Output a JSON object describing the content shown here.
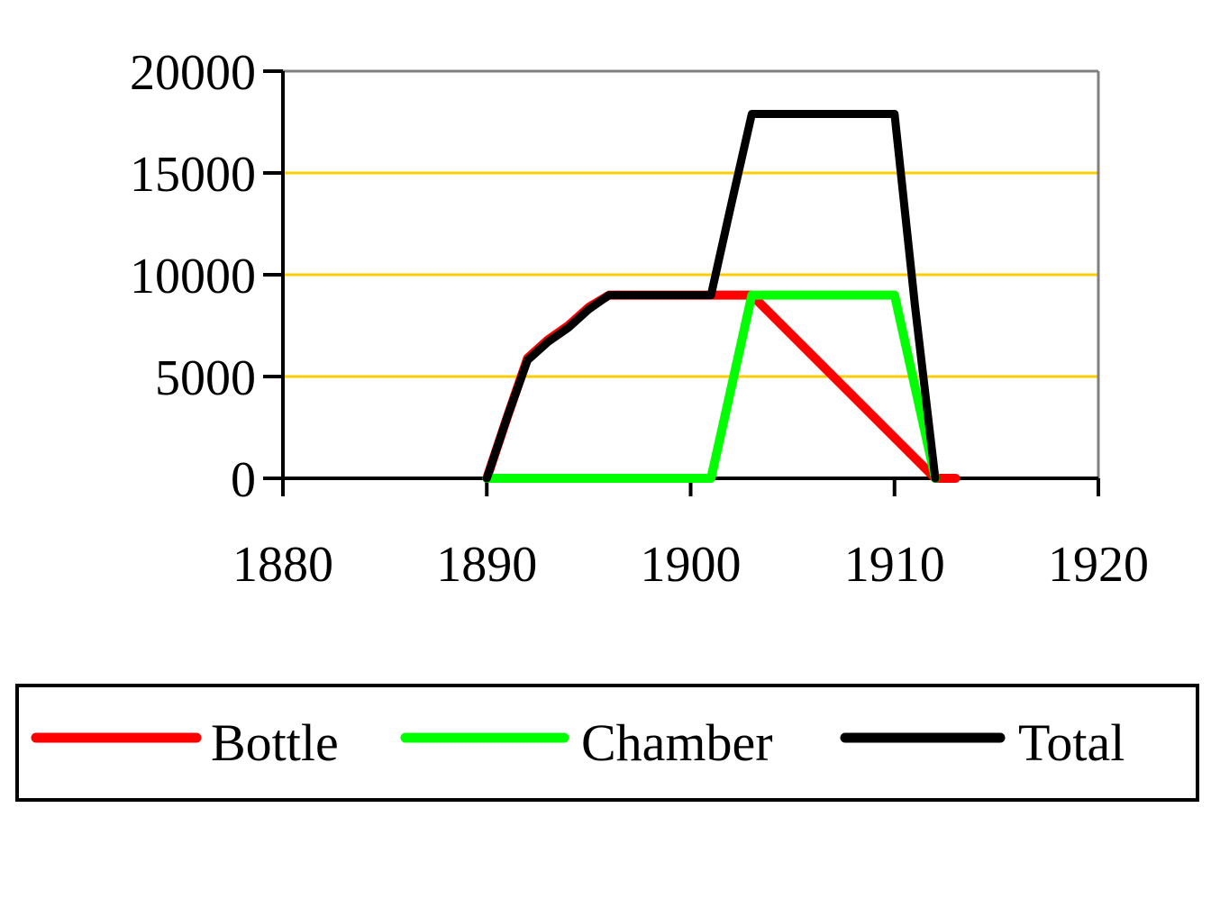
{
  "chart_data": {
    "type": "line",
    "title": "",
    "xlabel": "",
    "ylabel": "",
    "xlim": [
      1880,
      1920
    ],
    "ylim": [
      0,
      20000
    ],
    "x_ticks": [
      1880,
      1890,
      1900,
      1910,
      1920
    ],
    "y_ticks": [
      0,
      5000,
      10000,
      15000,
      20000
    ],
    "x_tick_labels": [
      "1880",
      "1890",
      "1900",
      "1910",
      "1920"
    ],
    "y_tick_labels": [
      "0",
      "5000",
      "10000",
      "15000",
      "20000"
    ],
    "grid": "horizontal",
    "grid_color": "#FFCC00",
    "legend_position": "bottom",
    "series": [
      {
        "name": "Bottle",
        "color": "#FF0000",
        "x": [
          1890,
          1891,
          1892,
          1893,
          1894,
          1895,
          1896,
          1897,
          1898,
          1899,
          1900,
          1901,
          1902,
          1903,
          1912,
          1913
        ],
        "y": [
          0,
          3000,
          5900,
          6800,
          7500,
          8400,
          9000,
          9000,
          9000,
          9000,
          9000,
          9000,
          9000,
          9000,
          0,
          0
        ]
      },
      {
        "name": "Chamber",
        "color": "#00FF00",
        "x": [
          1890,
          1891,
          1892,
          1893,
          1894,
          1895,
          1896,
          1897,
          1898,
          1899,
          1900,
          1901,
          1902,
          1903,
          1904,
          1905,
          1906,
          1907,
          1908,
          1909,
          1910,
          1911,
          1912
        ],
        "y": [
          0,
          0,
          0,
          0,
          0,
          0,
          0,
          0,
          0,
          0,
          0,
          0,
          4500,
          9000,
          9000,
          9000,
          9000,
          9000,
          9000,
          9000,
          9000,
          4500,
          0
        ]
      },
      {
        "name": "Total",
        "color": "#000000",
        "x": [
          1890,
          1891,
          1892,
          1893,
          1894,
          1895,
          1896,
          1897,
          1898,
          1899,
          1900,
          1901,
          1902,
          1903,
          1904,
          1905,
          1906,
          1907,
          1908,
          1909,
          1910,
          1911,
          1912
        ],
        "y": [
          0,
          3000,
          5800,
          6700,
          7400,
          8300,
          9000,
          9000,
          9000,
          9000,
          9000,
          9000,
          13500,
          17900,
          17900,
          17900,
          17900,
          17900,
          17900,
          17900,
          17900,
          8500,
          0
        ]
      }
    ]
  }
}
